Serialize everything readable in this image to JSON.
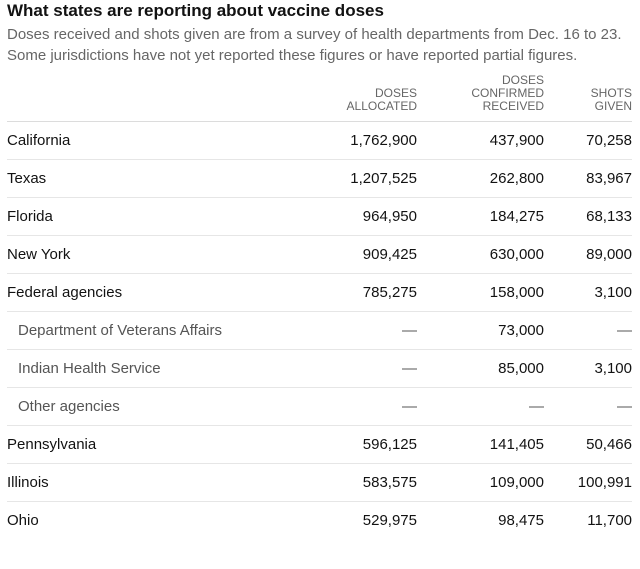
{
  "title": "What states are reporting about vaccine doses",
  "subtitle": "Doses received and shots given are from a survey of health departments from Dec. 16 to 23. Some jurisdictions have not yet reported these figures or have reported partial figures.",
  "columns": [
    {
      "line1": "",
      "line2": "Doses",
      "line3": "allocated"
    },
    {
      "line1": "Doses",
      "line2": "confirmed",
      "line3": "received"
    },
    {
      "line1": "",
      "line2": "Shots",
      "line3": "given"
    }
  ],
  "rows": [
    {
      "name": "California",
      "allocated": "1,762,900",
      "received": "437,900",
      "given": "70,258"
    },
    {
      "name": "Texas",
      "allocated": "1,207,525",
      "received": "262,800",
      "given": "83,967"
    },
    {
      "name": "Florida",
      "allocated": "964,950",
      "received": "184,275",
      "given": "68,133"
    },
    {
      "name": "New York",
      "allocated": "909,425",
      "received": "630,000",
      "given": "89,000"
    },
    {
      "name": "Federal agencies",
      "allocated": "785,275",
      "received": "158,000",
      "given": "3,100"
    },
    {
      "name": "Department of Veterans Affairs",
      "allocated": "—",
      "received": "73,000",
      "given": "—"
    },
    {
      "name": "Indian Health Service",
      "allocated": "—",
      "received": "85,000",
      "given": "3,100"
    },
    {
      "name": "Other agencies",
      "allocated": "—",
      "received": "—",
      "given": "—"
    },
    {
      "name": "Pennsylvania",
      "allocated": "596,125",
      "received": "141,405",
      "given": "50,466"
    },
    {
      "name": "Illinois",
      "allocated": "583,575",
      "received": "109,000",
      "given": "100,991"
    },
    {
      "name": "Ohio",
      "allocated": "529,975",
      "received": "98,475",
      "given": "11,700"
    }
  ]
}
